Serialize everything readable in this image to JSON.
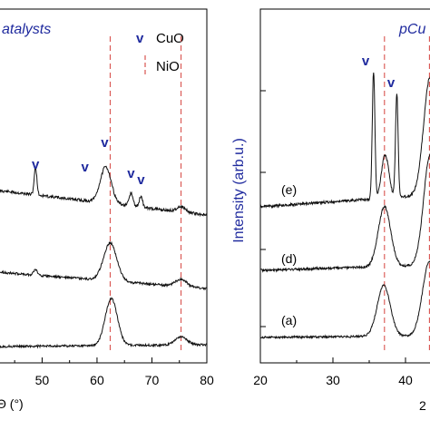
{
  "chart_data": [
    {
      "type": "line",
      "title": "atalysts",
      "xlabel": "Θ (°)",
      "x_ticks": [
        "50",
        "60",
        "70",
        "80"
      ],
      "xlim": [
        42,
        80
      ],
      "legend": [
        {
          "symbol": "v",
          "label": "CuO",
          "color": "#1f2a9e"
        },
        {
          "symbol": "dashed",
          "label": "NiO",
          "color": "#d9534f"
        }
      ],
      "legend_placement": "top-right",
      "nio_reference_x": [
        62.4,
        75.3
      ],
      "cuo_marker_x": [
        48.8,
        57.8,
        61.4,
        66.2,
        68.0
      ],
      "series": [
        {
          "peaks": [
            {
              "x": 48.8,
              "h": 30,
              "w": 0.25
            },
            {
              "x": 61.6,
              "h": 40,
              "w": 1.0
            },
            {
              "x": 66.2,
              "h": 14,
              "w": 0.35
            },
            {
              "x": 68.0,
              "h": 12,
              "w": 0.3
            },
            {
              "x": 75.3,
              "h": 6,
              "w": 0.8
            }
          ],
          "baseline_start": 210,
          "baseline_end": 237
        },
        {
          "peaks": [
            {
              "x": 48.8,
              "h": 6,
              "w": 0.35
            },
            {
              "x": 62.4,
              "h": 42,
              "w": 1.2
            },
            {
              "x": 75.3,
              "h": 8,
              "w": 1.0
            }
          ],
          "baseline_start": 300,
          "baseline_end": 318
        },
        {
          "peaks": [
            {
              "x": 62.6,
              "h": 52,
              "w": 1.1
            },
            {
              "x": 75.3,
              "h": 9,
              "w": 1.1
            }
          ],
          "baseline_start": 382,
          "baseline_end": 380
        }
      ]
    },
    {
      "type": "line",
      "title": "pCu",
      "ylabel": "Intensity (arb.u.)",
      "xlabel": "2",
      "x_ticks": [
        "20",
        "30",
        "40"
      ],
      "xlim": [
        20,
        45
      ],
      "cuo_marker_x": [
        34.5,
        38.0
      ],
      "nio_reference_x": [
        37.1,
        43.3
      ],
      "series": [
        {
          "label": "(e)",
          "peaks": [
            {
              "x": 35.6,
              "h": 140,
              "w": 0.18
            },
            {
              "x": 37.2,
              "h": 48,
              "w": 0.5
            },
            {
              "x": 38.8,
              "h": 115,
              "w": 0.18
            },
            {
              "x": 43.4,
              "h": 130,
              "w": 0.9
            }
          ],
          "baseline_start": 228,
          "baseline_end": 214
        },
        {
          "label": "(d)",
          "peaks": [
            {
              "x": 37.1,
              "h": 66,
              "w": 0.85
            },
            {
              "x": 43.4,
              "h": 122,
              "w": 0.9
            }
          ],
          "baseline_start": 298,
          "baseline_end": 292
        },
        {
          "label": "(a)",
          "peaks": [
            {
              "x": 37.0,
              "h": 56,
              "w": 0.9
            },
            {
              "x": 43.3,
              "h": 82,
              "w": 0.95
            }
          ],
          "baseline_start": 372,
          "baseline_end": 370
        }
      ]
    }
  ]
}
